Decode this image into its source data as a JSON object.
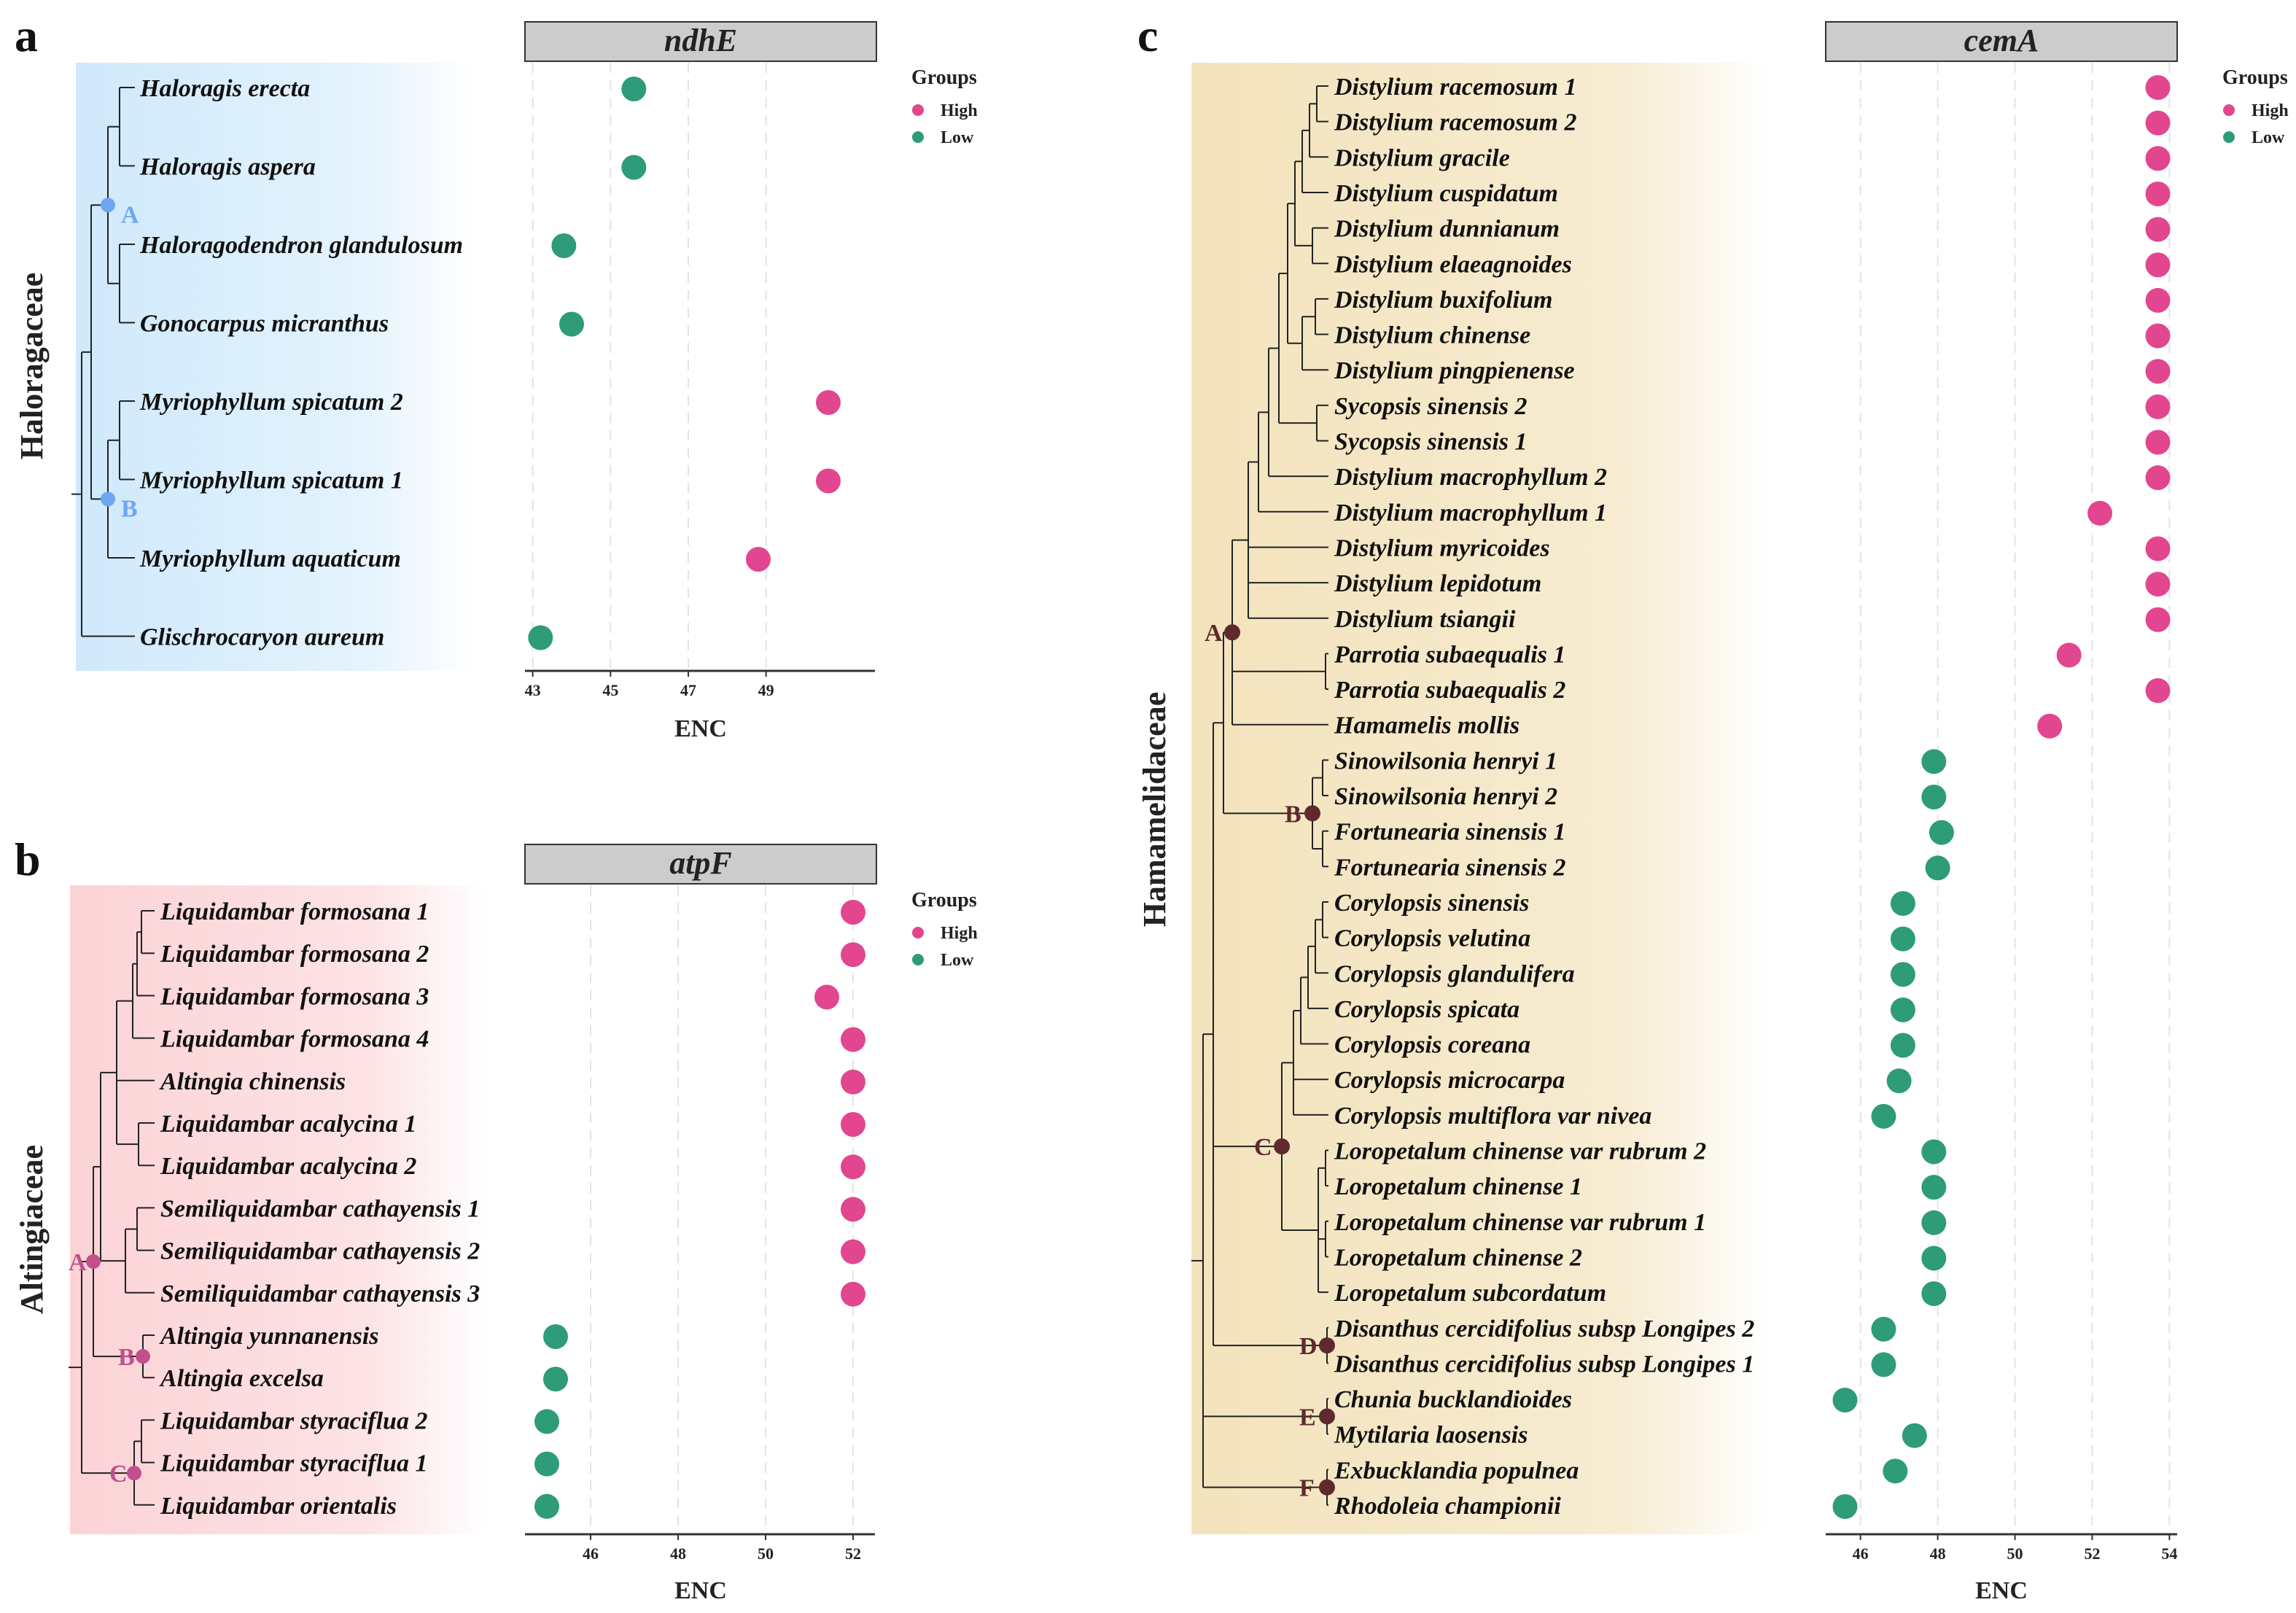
{
  "legend": {
    "title": "Groups",
    "high": "High",
    "low": "Low"
  },
  "colors": {
    "high": "#e2468f",
    "low": "#2e9b79",
    "strip": "#cccccc"
  },
  "chart_data": [
    {
      "panel": "a",
      "type": "scatter",
      "family": "Haloragaceae",
      "gene": "ndhE",
      "xlabel": "ENC",
      "xlim": [
        42.8,
        51.8
      ],
      "xticks": [
        43,
        45,
        47,
        49
      ],
      "grid": "dashed vertical",
      "bg": [
        "#cfe9fb",
        "#ffffff"
      ],
      "node_color": "#6fa6f2",
      "tips": [
        {
          "name": "Haloragis erecta",
          "enc": 45.6,
          "group": "Low"
        },
        {
          "name": "Haloragis aspera",
          "enc": 45.6,
          "group": "Low"
        },
        {
          "name": "Haloragodendron glandulosum",
          "enc": 43.8,
          "group": "Low"
        },
        {
          "name": "Gonocarpus micranthus",
          "enc": 44.0,
          "group": "Low"
        },
        {
          "name": "Myriophyllum spicatum 2",
          "enc": 50.6,
          "group": "High"
        },
        {
          "name": "Myriophyllum spicatum 1",
          "enc": 50.6,
          "group": "High"
        },
        {
          "name": "Myriophyllum aquaticum",
          "enc": 48.8,
          "group": "High"
        },
        {
          "name": "Glischrocaryon aureum",
          "enc": 43.2,
          "group": "Low"
        }
      ],
      "nodes": [
        {
          "label": "A"
        },
        {
          "label": "B"
        }
      ]
    },
    {
      "panel": "b",
      "type": "scatter",
      "family": "Altingiaceae",
      "gene": "atpF",
      "xlabel": "ENC",
      "xlim": [
        44.5,
        52.5
      ],
      "xticks": [
        46,
        48,
        50,
        52
      ],
      "grid": "dashed vertical",
      "bg": [
        "#fbd6d8",
        "#ffffff"
      ],
      "node_color": "#c24f8c",
      "tips": [
        {
          "name": "Liquidambar formosana 1",
          "enc": 52.0,
          "group": "High"
        },
        {
          "name": "Liquidambar formosana 2",
          "enc": 52.0,
          "group": "High"
        },
        {
          "name": "Liquidambar formosana 3",
          "enc": 51.4,
          "group": "High"
        },
        {
          "name": "Liquidambar formosana 4",
          "enc": 52.0,
          "group": "High"
        },
        {
          "name": "Altingia chinensis",
          "enc": 52.0,
          "group": "High"
        },
        {
          "name": "Liquidambar acalycina 1",
          "enc": 52.0,
          "group": "High"
        },
        {
          "name": "Liquidambar acalycina 2",
          "enc": 52.0,
          "group": "High"
        },
        {
          "name": "Semiliquidambar cathayensis 1",
          "enc": 52.0,
          "group": "High"
        },
        {
          "name": "Semiliquidambar cathayensis 2",
          "enc": 52.0,
          "group": "High"
        },
        {
          "name": "Semiliquidambar cathayensis 3",
          "enc": 52.0,
          "group": "High"
        },
        {
          "name": "Altingia yunnanensis",
          "enc": 45.2,
          "group": "Low"
        },
        {
          "name": "Altingia excelsa",
          "enc": 45.2,
          "group": "Low"
        },
        {
          "name": "Liquidambar styraciflua 2",
          "enc": 45.0,
          "group": "Low"
        },
        {
          "name": "Liquidambar styraciflua 1",
          "enc": 45.0,
          "group": "Low"
        },
        {
          "name": "Liquidambar orientalis",
          "enc": 45.0,
          "group": "Low"
        }
      ],
      "nodes": [
        {
          "label": "A"
        },
        {
          "label": "B"
        },
        {
          "label": "C"
        }
      ]
    },
    {
      "panel": "c",
      "type": "scatter",
      "family": "Hamamelidaceae",
      "gene": "cemA",
      "xlabel": "ENC",
      "xlim": [
        45.1,
        54.2
      ],
      "xticks": [
        46,
        48,
        50,
        52,
        54
      ],
      "grid": "dashed vertical",
      "bg": [
        "#f3e5c0",
        "#ffffff"
      ],
      "node_color": "#5e2a2e",
      "tips": [
        {
          "name": "Distylium racemosum 1",
          "enc": 53.7,
          "group": "High"
        },
        {
          "name": "Distylium racemosum 2",
          "enc": 53.7,
          "group": "High"
        },
        {
          "name": "Distylium gracile",
          "enc": 53.7,
          "group": "High"
        },
        {
          "name": "Distylium cuspidatum",
          "enc": 53.7,
          "group": "High"
        },
        {
          "name": "Distylium dunnianum",
          "enc": 53.7,
          "group": "High"
        },
        {
          "name": "Distylium elaeagnoides",
          "enc": 53.7,
          "group": "High"
        },
        {
          "name": "Distylium buxifolium",
          "enc": 53.7,
          "group": "High"
        },
        {
          "name": "Distylium chinense",
          "enc": 53.7,
          "group": "High"
        },
        {
          "name": "Distylium pingpienense",
          "enc": 53.7,
          "group": "High"
        },
        {
          "name": "Sycopsis sinensis 2",
          "enc": 53.7,
          "group": "High"
        },
        {
          "name": "Sycopsis sinensis 1",
          "enc": 53.7,
          "group": "High"
        },
        {
          "name": "Distylium macrophyllum 2",
          "enc": 53.7,
          "group": "High"
        },
        {
          "name": "Distylium macrophyllum 1",
          "enc": 52.2,
          "group": "High"
        },
        {
          "name": "Distylium myricoides",
          "enc": 53.7,
          "group": "High"
        },
        {
          "name": "Distylium lepidotum",
          "enc": 53.7,
          "group": "High"
        },
        {
          "name": "Distylium tsiangii",
          "enc": 53.7,
          "group": "High"
        },
        {
          "name": "Parrotia subaequalis 1",
          "enc": 51.4,
          "group": "High"
        },
        {
          "name": "Parrotia subaequalis 2",
          "enc": 53.7,
          "group": "High"
        },
        {
          "name": "Hamamelis mollis",
          "enc": 50.9,
          "group": "High"
        },
        {
          "name": "Sinowilsonia henryi 1",
          "enc": 47.9,
          "group": "Low"
        },
        {
          "name": "Sinowilsonia henryi 2",
          "enc": 47.9,
          "group": "Low"
        },
        {
          "name": "Fortunearia sinensis 1",
          "enc": 48.1,
          "group": "Low"
        },
        {
          "name": "Fortunearia sinensis 2",
          "enc": 48.0,
          "group": "Low"
        },
        {
          "name": "Corylopsis sinensis",
          "enc": 47.1,
          "group": "Low"
        },
        {
          "name": "Corylopsis velutina",
          "enc": 47.1,
          "group": "Low"
        },
        {
          "name": "Corylopsis glandulifera",
          "enc": 47.1,
          "group": "Low"
        },
        {
          "name": "Corylopsis spicata",
          "enc": 47.1,
          "group": "Low"
        },
        {
          "name": "Corylopsis coreana",
          "enc": 47.1,
          "group": "Low"
        },
        {
          "name": "Corylopsis microcarpa",
          "enc": 47.0,
          "group": "Low"
        },
        {
          "name": "Corylopsis multiflora var nivea",
          "enc": 46.6,
          "group": "Low"
        },
        {
          "name": "Loropetalum chinense var rubrum 2",
          "enc": 47.9,
          "group": "Low"
        },
        {
          "name": "Loropetalum chinense 1",
          "enc": 47.9,
          "group": "Low"
        },
        {
          "name": "Loropetalum chinense var rubrum 1",
          "enc": 47.9,
          "group": "Low"
        },
        {
          "name": "Loropetalum chinense 2",
          "enc": 47.9,
          "group": "Low"
        },
        {
          "name": "Loropetalum subcordatum",
          "enc": 47.9,
          "group": "Low"
        },
        {
          "name": "Disanthus cercidifolius subsp Longipes 2",
          "enc": 46.6,
          "group": "Low"
        },
        {
          "name": "Disanthus cercidifolius subsp Longipes 1",
          "enc": 46.6,
          "group": "Low"
        },
        {
          "name": "Chunia bucklandioides",
          "enc": 45.6,
          "group": "Low"
        },
        {
          "name": "Mytilaria laosensis",
          "enc": 47.4,
          "group": "Low"
        },
        {
          "name": "Exbucklandia populnea",
          "enc": 46.9,
          "group": "Low"
        },
        {
          "name": "Rhodoleia championii",
          "enc": 45.6,
          "group": "Low"
        }
      ],
      "nodes": [
        {
          "label": "A"
        },
        {
          "label": "B"
        },
        {
          "label": "C"
        },
        {
          "label": "D"
        },
        {
          "label": "E"
        },
        {
          "label": "F"
        }
      ]
    }
  ]
}
